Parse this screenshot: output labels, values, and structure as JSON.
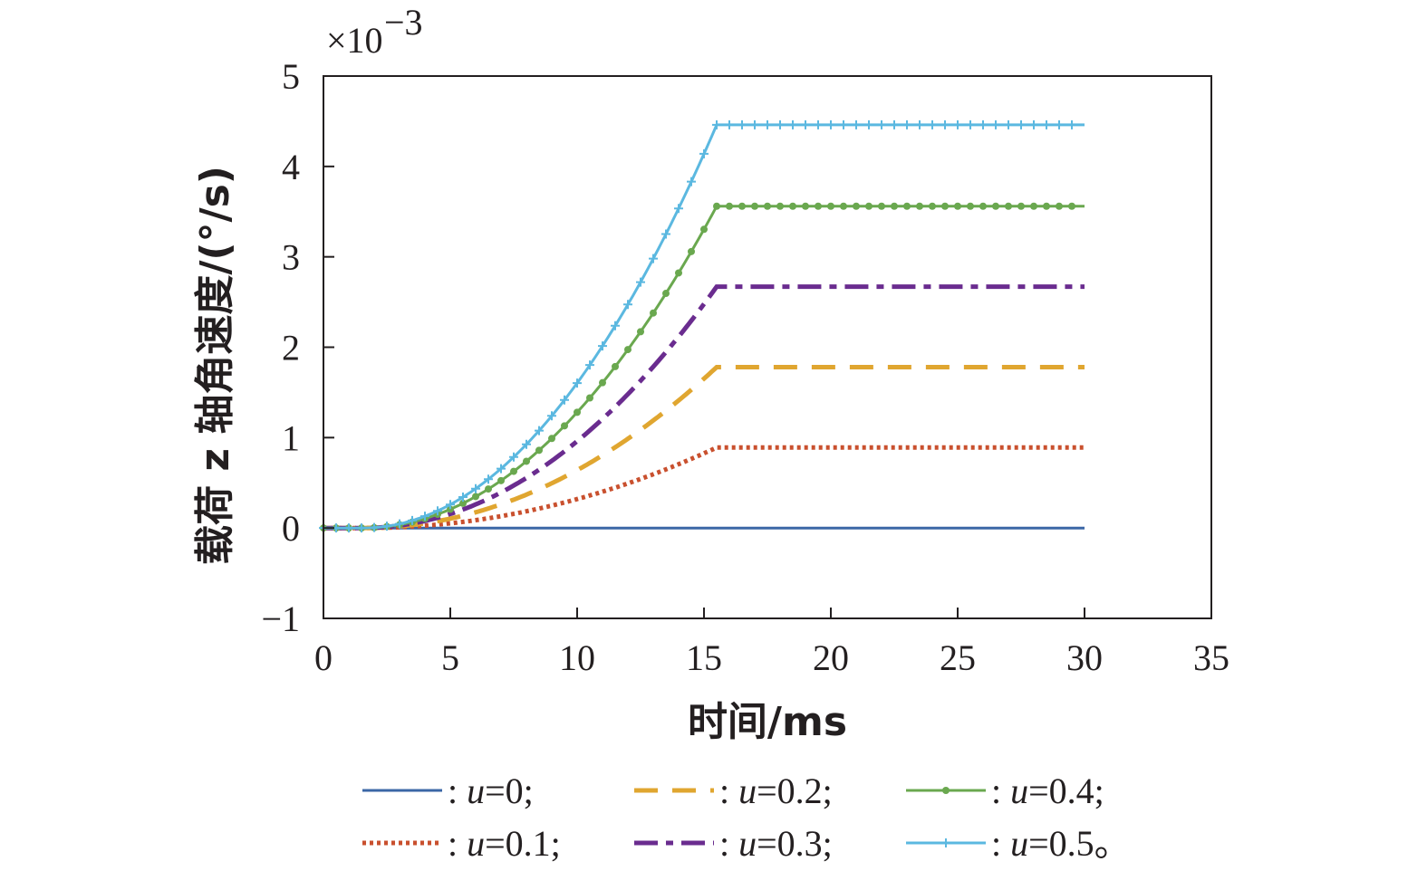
{
  "chart_data": {
    "type": "line",
    "xlabel": "时间/ms",
    "ylabel": "载荷 z 轴角速度/(°/s)",
    "y_scale_label": "×10",
    "y_scale_exponent": "−3",
    "xlim": [
      0,
      35
    ],
    "ylim": [
      -1,
      5
    ],
    "xticks": [
      0,
      5,
      10,
      15,
      20,
      25,
      30,
      35
    ],
    "yticks": [
      -1,
      0,
      1,
      2,
      3,
      4,
      5
    ],
    "xtick_labels": [
      "0",
      "5",
      "10",
      "15",
      "20",
      "25",
      "30",
      "35"
    ],
    "ytick_labels": [
      "−1",
      "0",
      "1",
      "2",
      "3",
      "4",
      "5"
    ],
    "grid": false,
    "legend_placement": "bottom",
    "ramp_end_ms": 15.5,
    "end_ms": 30,
    "series": [
      {
        "name": ": u=0;",
        "param": "u",
        "value": "=0;",
        "final": 0.0,
        "color": "#3b67a6",
        "style": "solid",
        "marker": "none"
      },
      {
        "name": ": u=0.1;",
        "param": "u",
        "value": "=0.1;",
        "final": 0.89,
        "color": "#c9502e",
        "style": "dotted",
        "marker": "none"
      },
      {
        "name": ": u=0.2;",
        "param": "u",
        "value": "=0.2;",
        "final": 1.78,
        "color": "#e0a630",
        "style": "dashed",
        "marker": "none"
      },
      {
        "name": ": u=0.3;",
        "param": "u",
        "value": "=0.3;",
        "final": 2.67,
        "color": "#6a2c8f",
        "style": "dashdot",
        "marker": "none"
      },
      {
        "name": ": u=0.4;",
        "param": "u",
        "value": "=0.4;",
        "final": 3.56,
        "color": "#6aa84f",
        "style": "solid",
        "marker": "dot"
      },
      {
        "name": ": u=0.5。",
        "param": "u",
        "value": "=0.5。",
        "final": 4.46,
        "color": "#5bb8e0",
        "style": "solid",
        "marker": "plus"
      }
    ]
  }
}
